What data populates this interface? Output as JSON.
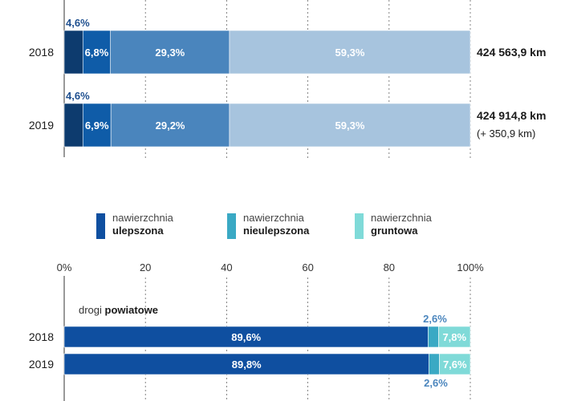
{
  "colors": {
    "dark_navy": "#0d3b6e",
    "royal_blue": "#0f5ca8",
    "mid_blue": "#4a85bd",
    "light_blue": "#a7c4de",
    "ulepszona": "#0f4fa0",
    "nieulepszona": "#3aa9c4",
    "gruntowa": "#7fdad8",
    "label_blue": "#4a85bd",
    "axis": "#333333"
  },
  "legend": [
    {
      "line1": "nawierzchnia",
      "line2": "ulepszona",
      "color": "#0f4fa0"
    },
    {
      "line1": "nawierzchnia",
      "line2": "nieulepszona",
      "color": "#3aa9c4"
    },
    {
      "line1": "nawierzchnia",
      "line2": "gruntowa",
      "color": "#7fdad8"
    }
  ],
  "chart_data": [
    {
      "type": "bar",
      "orientation": "horizontal",
      "stacked": true,
      "categories": [
        "2018",
        "2019"
      ],
      "series": [
        {
          "values": [
            4.6,
            4.6
          ],
          "labels": [
            "4,6%",
            "4,6%"
          ],
          "color": "#0d3b6e"
        },
        {
          "values": [
            6.8,
            6.9
          ],
          "labels": [
            "6,8%",
            "6,9%"
          ],
          "color": "#0f5ca8"
        },
        {
          "values": [
            29.3,
            29.2
          ],
          "labels": [
            "29,3%",
            "29,2%"
          ],
          "color": "#4a85bd"
        },
        {
          "values": [
            59.3,
            59.3
          ],
          "labels": [
            "59,3%",
            "59,3%"
          ],
          "color": "#a7c4de"
        }
      ],
      "totals": [
        {
          "line1": "424 563,9 km",
          "line2": ""
        },
        {
          "line1": "424 914,8 km",
          "line2": "(+ 350,9 km)"
        }
      ],
      "xlim": [
        0,
        100
      ],
      "gridlines": [
        20,
        40,
        60,
        80,
        100
      ]
    },
    {
      "type": "bar",
      "orientation": "horizontal",
      "stacked": true,
      "group_label": {
        "prefix": "drogi",
        "name": "powiatowe"
      },
      "categories": [
        "2018",
        "2019"
      ],
      "series": [
        {
          "values": [
            89.6,
            89.8
          ],
          "labels": [
            "89,6%",
            "89,8%"
          ],
          "color": "#0f4fa0"
        },
        {
          "values": [
            2.6,
            2.6
          ],
          "labels": [
            "2,6%",
            "2,6%"
          ],
          "color": "#3aa9c4"
        },
        {
          "values": [
            7.8,
            7.6
          ],
          "labels": [
            "7,8%",
            "7,6%"
          ],
          "color": "#7fdad8"
        }
      ],
      "xlim": [
        0,
        100
      ],
      "ticks": [
        "0%",
        "20",
        "40",
        "60",
        "80",
        "100%"
      ],
      "tick_values": [
        0,
        20,
        40,
        60,
        80,
        100
      ]
    }
  ]
}
